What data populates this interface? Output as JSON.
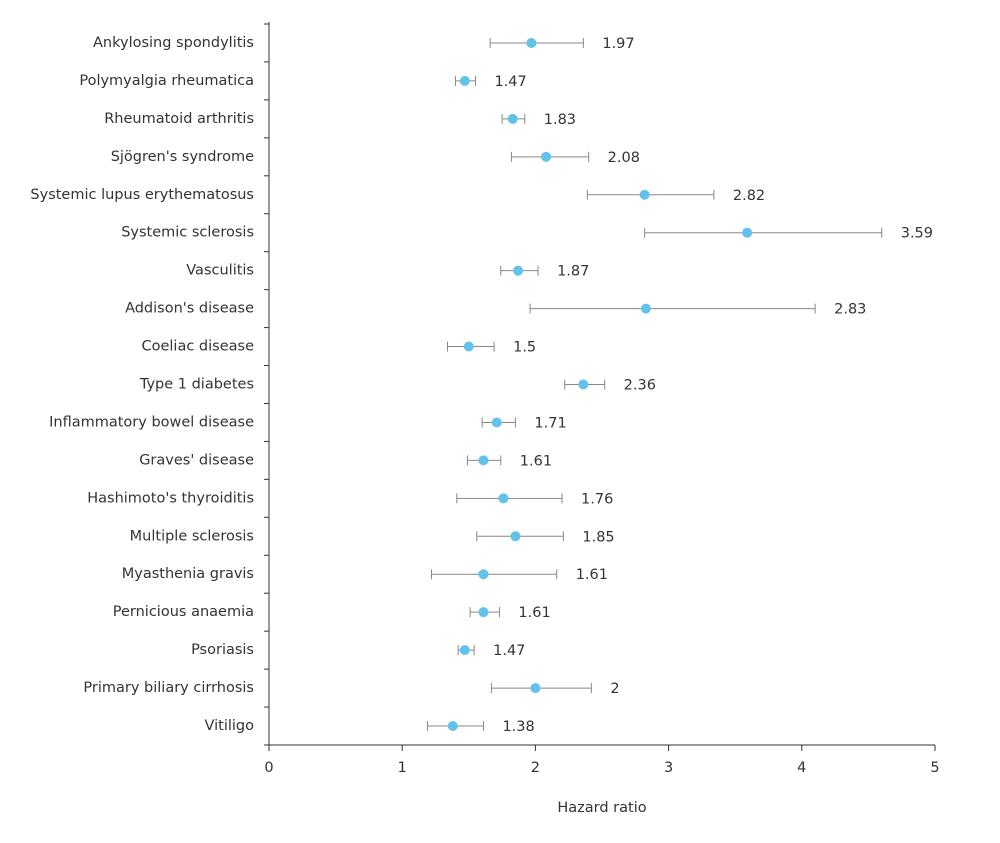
{
  "chart_data": {
    "type": "forest",
    "x_label": "Hazard ratio",
    "categories": [
      "Ankylosing spondylitis",
      "Polymyalgia rheumatica",
      "Rheumatoid arthritis",
      "Sjögren's syndrome",
      "Systemic lupus erythematosus",
      "Systemic sclerosis",
      "Vasculitis",
      "Addison's disease",
      "Coeliac disease",
      "Type 1 diabetes",
      "Inflammatory bowel disease",
      "Graves' disease",
      "Hashimoto's thyroiditis",
      "Multiple sclerosis",
      "Myasthenia gravis",
      "Pernicious anaemia",
      "Psoriasis",
      "Primary biliary cirrhosis",
      "Vitiligo"
    ],
    "values": [
      1.97,
      1.47,
      1.83,
      2.08,
      2.82,
      3.59,
      1.87,
      2.83,
      1.5,
      2.36,
      1.71,
      1.61,
      1.76,
      1.85,
      1.61,
      1.61,
      1.47,
      2,
      1.38
    ],
    "lower": [
      1.66,
      1.4,
      1.75,
      1.82,
      2.39,
      2.82,
      1.74,
      1.96,
      1.34,
      2.22,
      1.6,
      1.49,
      1.41,
      1.56,
      1.22,
      1.51,
      1.42,
      1.67,
      1.19
    ],
    "upper": [
      2.36,
      1.55,
      1.92,
      2.4,
      3.34,
      4.6,
      2.02,
      4.1,
      1.69,
      2.52,
      1.85,
      1.74,
      2.2,
      2.21,
      2.16,
      1.73,
      1.54,
      2.42,
      1.61
    ],
    "color": "#62c3ea",
    "ci_color": "#888888",
    "xlim": [
      0,
      5
    ],
    "xticks": [
      0,
      1,
      2,
      3,
      4,
      5
    ]
  }
}
